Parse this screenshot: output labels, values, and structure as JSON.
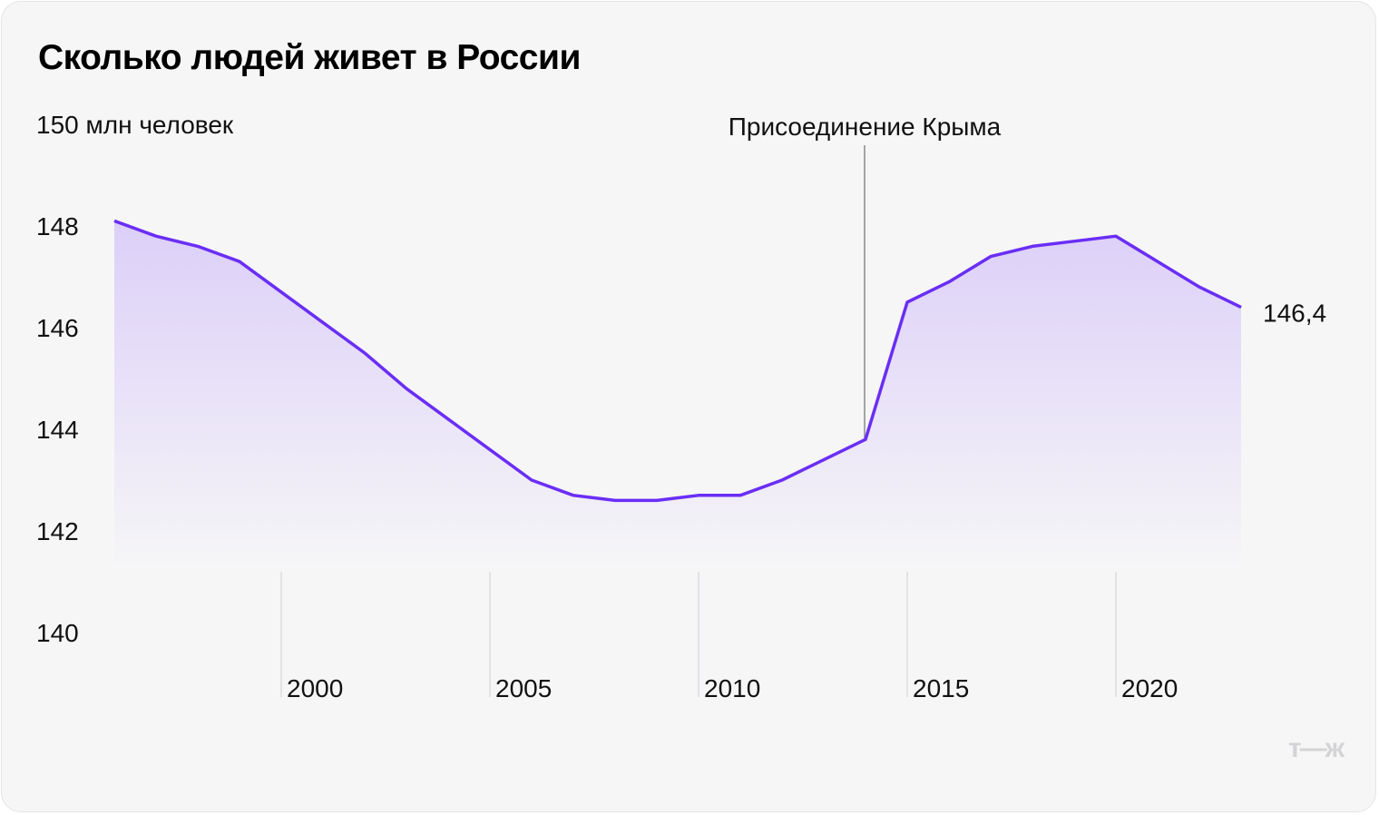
{
  "title": "Сколько людей живет в России",
  "logo": "т—ж",
  "chart_data": {
    "type": "area",
    "title": "Сколько людей живет в России",
    "ylabel": "150 млн человек",
    "y_ticks": [
      "150 млн человек",
      "148",
      "146",
      "144",
      "142",
      "140"
    ],
    "y_tick_values": [
      150,
      148,
      146,
      144,
      142,
      140
    ],
    "x_ticks": [
      "2000",
      "2005",
      "2010",
      "2015",
      "2020"
    ],
    "x_tick_values": [
      2000,
      2005,
      2010,
      2015,
      2020
    ],
    "ylim": [
      140,
      150
    ],
    "xlim": [
      1996,
      2023
    ],
    "grid": "vertical lines at x ticks",
    "x": [
      1996,
      1997,
      1998,
      1999,
      2000,
      2001,
      2002,
      2003,
      2004,
      2005,
      2006,
      2007,
      2008,
      2009,
      2010,
      2011,
      2012,
      2013,
      2014,
      2015,
      2016,
      2017,
      2018,
      2019,
      2020,
      2021,
      2022,
      2023
    ],
    "values": [
      148.1,
      147.8,
      147.6,
      147.3,
      146.7,
      146.1,
      145.5,
      144.8,
      144.2,
      143.6,
      143.0,
      142.7,
      142.6,
      142.6,
      142.7,
      142.7,
      143.0,
      143.4,
      143.8,
      146.5,
      146.9,
      147.4,
      147.6,
      147.7,
      147.8,
      147.3,
      146.8,
      146.4
    ],
    "last_value_label": "146,4",
    "annotation": {
      "label": "Присоединение Крыма",
      "x": 2014
    },
    "colors": {
      "line": "#6a2ef5",
      "fill": "#d9ccf7",
      "last_label": "#9a6df2"
    }
  }
}
